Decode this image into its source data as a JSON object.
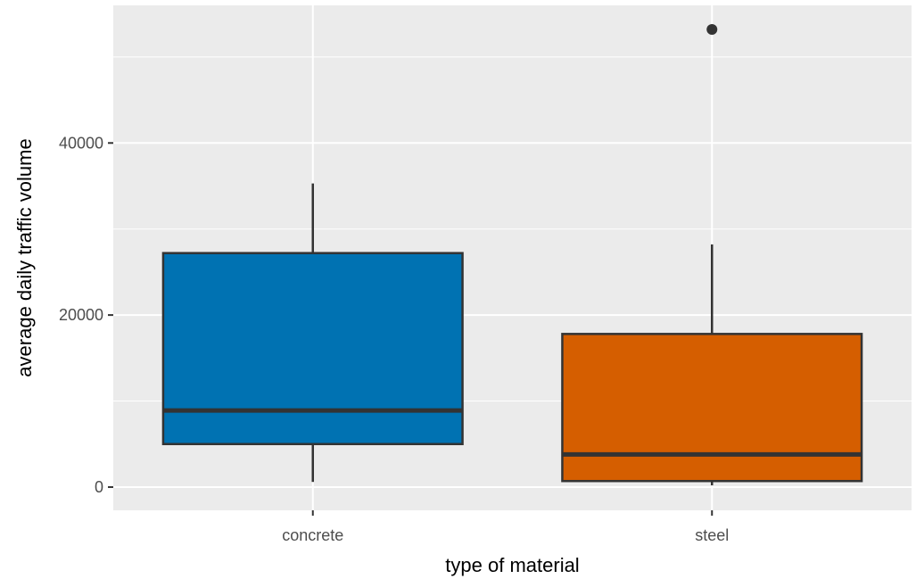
{
  "chart_data": {
    "type": "boxplot",
    "title": "",
    "xlabel": "type of material",
    "ylabel": "average daily traffic volume",
    "categories": [
      "concrete",
      "steel"
    ],
    "boxes": [
      {
        "category": "concrete",
        "whisker_low": 600,
        "q1": 5000,
        "median": 8900,
        "q3": 27200,
        "whisker_high": 35300,
        "outliers": [],
        "fill": "#0072B2"
      },
      {
        "category": "steel",
        "whisker_low": 200,
        "q1": 700,
        "median": 3800,
        "q3": 17800,
        "whisker_high": 28200,
        "outliers": [
          53200
        ],
        "fill": "#D55E00"
      }
    ],
    "yticks": [
      0,
      20000,
      40000
    ],
    "yticks_minor": [
      10000,
      30000,
      50000
    ],
    "ylim": [
      -2700,
      56000
    ],
    "grid": true,
    "legend": "none",
    "colors": {
      "panel": "#EBEBEB",
      "grid": "#FFFFFF",
      "box_outline": "#333333",
      "tick_text": "#4D4D4D",
      "title_text": "#000000"
    }
  }
}
